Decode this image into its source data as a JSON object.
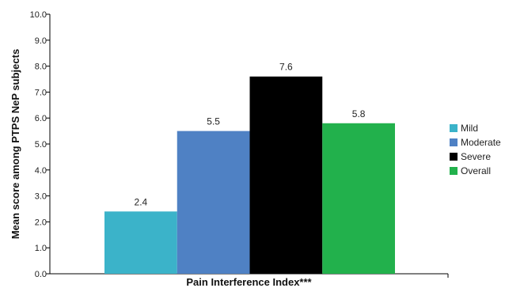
{
  "chart_data": {
    "type": "bar",
    "xlabel": "Pain Interference Index***",
    "ylabel": "Mean score among PTPS NeP subjects",
    "ylim": [
      0,
      10
    ],
    "yticks": [
      "0.0",
      "1.0",
      "2.0",
      "3.0",
      "4.0",
      "5.0",
      "6.0",
      "7.0",
      "8.0",
      "9.0",
      "10.0"
    ],
    "grid": false,
    "legend_position": "right",
    "series": [
      {
        "name": "Mild",
        "value": 2.4,
        "label": "2.4",
        "color": "#3bb3c9"
      },
      {
        "name": "Moderate",
        "value": 5.5,
        "label": "5.5",
        "color": "#4f81c4"
      },
      {
        "name": "Severe",
        "value": 7.6,
        "label": "7.6",
        "color": "#000000"
      },
      {
        "name": "Overall",
        "value": 5.8,
        "label": "5.8",
        "color": "#22b14c"
      }
    ]
  }
}
